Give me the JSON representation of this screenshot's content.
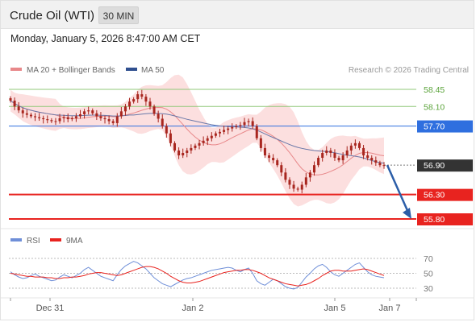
{
  "header": {
    "title": "Crude Oil (WTI)",
    "timeframe": "30 MIN"
  },
  "datetime": "Monday, January 5, 2026 8:47:00 AM CET",
  "copyright": "Research © 2026 Trading Central",
  "legend": {
    "ma20": "MA 20 + Bollinger Bands",
    "ma50": "MA 50",
    "rsi": "RSI",
    "ma9": "9MA"
  },
  "colors": {
    "candle": "#a8261f",
    "bollinger_fill": "#fbd9d9",
    "ma20": "#e8888a",
    "ma50": "#6a78a8",
    "resistance": "#90c878",
    "pivot": "#2f6fdf",
    "support": "#e8231f",
    "current": "#333333",
    "arrow": "#2c5ea8",
    "rsi": "#6f8fd8",
    "rsi_ma": "#e8231f"
  },
  "chart_data": [
    {
      "type": "candlestick",
      "title": "Crude Oil (WTI)",
      "price_range": [
        55.6,
        58.6
      ],
      "x_tick_labels": [
        "Dec 31",
        "Jan 2",
        "Jan 5",
        "Jan 7"
      ],
      "levels": [
        {
          "value": 58.45,
          "label": "58.45",
          "kind": "resistance"
        },
        {
          "value": 58.1,
          "label": "58.10",
          "kind": "resistance"
        },
        {
          "value": 57.7,
          "label": "57.70",
          "kind": "pivot"
        },
        {
          "value": 56.9,
          "label": "56.90",
          "kind": "current"
        },
        {
          "value": 56.3,
          "label": "56.30",
          "kind": "support"
        },
        {
          "value": 55.8,
          "label": "55.80",
          "kind": "support"
        }
      ],
      "forecast_arrow": {
        "from": 56.9,
        "to": 55.8
      },
      "closes": [
        58.22,
        58.1,
        58.02,
        57.96,
        57.93,
        57.9,
        57.88,
        57.86,
        57.84,
        57.82,
        57.8,
        57.8,
        57.86,
        57.88,
        57.84,
        57.86,
        57.9,
        57.94,
        58.0,
        58.02,
        57.96,
        57.9,
        57.86,
        57.84,
        57.8,
        57.76,
        57.9,
        58.0,
        58.1,
        58.2,
        58.25,
        58.35,
        58.3,
        58.2,
        58.1,
        57.95,
        57.85,
        57.7,
        57.55,
        57.35,
        57.2,
        57.1,
        57.15,
        57.2,
        57.25,
        57.3,
        57.35,
        57.4,
        57.45,
        57.5,
        57.55,
        57.58,
        57.62,
        57.65,
        57.68,
        57.7,
        57.72,
        57.78,
        57.8,
        57.7,
        57.45,
        57.25,
        57.1,
        57.05,
        57.0,
        56.9,
        56.75,
        56.6,
        56.5,
        56.42,
        56.4,
        56.5,
        56.65,
        56.75,
        56.9,
        57.05,
        57.15,
        57.2,
        57.15,
        57.05,
        57.0,
        57.1,
        57.2,
        57.3,
        57.35,
        57.25,
        57.1,
        57.05,
        57.0,
        56.95,
        56.9,
        56.9
      ]
    },
    {
      "type": "line",
      "title": "RSI",
      "ylim": [
        20,
        80
      ],
      "y_ticks": [
        30,
        50,
        70
      ],
      "series": [
        {
          "name": "RSI",
          "values": [
            52,
            48,
            45,
            43,
            44,
            47,
            49,
            46,
            44,
            42,
            40,
            41,
            45,
            48,
            46,
            44,
            47,
            50,
            55,
            58,
            54,
            50,
            46,
            44,
            42,
            40,
            48,
            55,
            60,
            63,
            66,
            64,
            60,
            56,
            50,
            44,
            40,
            36,
            34,
            32,
            35,
            38,
            41,
            43,
            44,
            46,
            48,
            50,
            52,
            54,
            55,
            56,
            57,
            58,
            57,
            54,
            52,
            55,
            57,
            50,
            40,
            36,
            34,
            38,
            42,
            40,
            36,
            32,
            30,
            29,
            31,
            38,
            45,
            50,
            56,
            60,
            62,
            58,
            52,
            48,
            46,
            50,
            54,
            58,
            62,
            64,
            58,
            52,
            48,
            46,
            45,
            44
          ]
        },
        {
          "name": "9MA",
          "values": [
            50,
            49,
            48,
            47,
            46,
            46,
            45,
            45,
            45,
            44,
            44,
            43,
            43,
            44,
            44,
            45,
            45,
            46,
            47,
            49,
            50,
            51,
            51,
            50,
            49,
            48,
            47,
            48,
            50,
            52,
            54,
            56,
            58,
            59,
            59,
            58,
            56,
            53,
            50,
            46,
            43,
            40,
            38,
            37,
            37,
            38,
            39,
            41,
            43,
            45,
            47,
            49,
            51,
            52,
            53,
            54,
            54,
            55,
            55,
            54,
            52,
            50,
            47,
            44,
            42,
            40,
            38,
            36,
            35,
            34,
            33,
            34,
            35,
            37,
            40,
            43,
            47,
            50,
            53,
            54,
            54,
            53,
            53,
            53,
            54,
            55,
            56,
            55,
            53,
            51,
            49,
            47
          ]
        }
      ]
    }
  ]
}
